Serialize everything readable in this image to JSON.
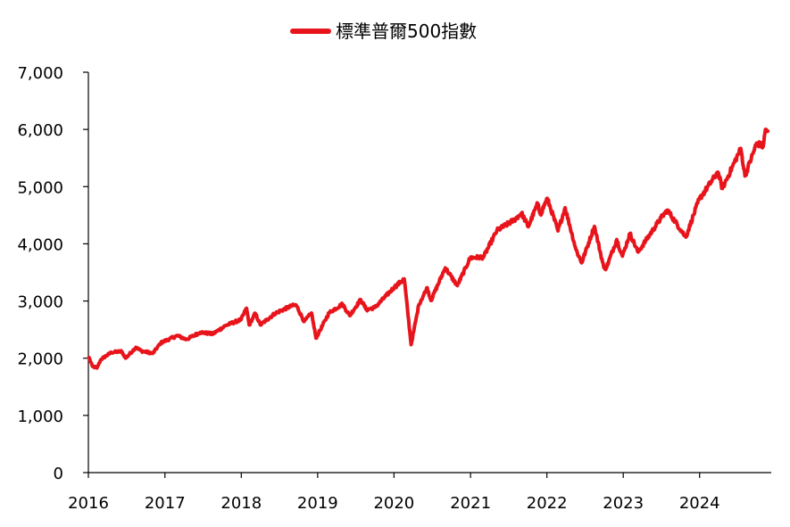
{
  "chart_data": {
    "type": "line",
    "title": "",
    "xlabel": "",
    "ylabel": "",
    "legend": {
      "position": "top-center",
      "entries": [
        "標準普爾500指數"
      ]
    },
    "grid": false,
    "xlim": [
      "2016-01-01",
      "2024-11-30"
    ],
    "ylim": [
      0,
      7000
    ],
    "x_ticks": [
      "2016",
      "2017",
      "2018",
      "2019",
      "2020",
      "2021",
      "2022",
      "2023",
      "2024"
    ],
    "y_ticks": [
      "0",
      "1,000",
      "2,000",
      "3,000",
      "4,000",
      "5,000",
      "6,000",
      "7,000"
    ],
    "y_tick_values": [
      0,
      1000,
      2000,
      3000,
      4000,
      5000,
      6000,
      7000
    ],
    "series": [
      {
        "name": "標準普爾500指數",
        "color": "#e8141b",
        "points": [
          [
            "2016-01-04",
            2013
          ],
          [
            "2016-01-20",
            1859
          ],
          [
            "2016-02-11",
            1829
          ],
          [
            "2016-03-01",
            1978
          ],
          [
            "2016-04-20",
            2102
          ],
          [
            "2016-06-08",
            2119
          ],
          [
            "2016-06-27",
            2000
          ],
          [
            "2016-08-15",
            2190
          ],
          [
            "2016-09-09",
            2128
          ],
          [
            "2016-11-04",
            2085
          ],
          [
            "2016-12-13",
            2271
          ],
          [
            "2017-03-01",
            2395
          ],
          [
            "2017-04-13",
            2328
          ],
          [
            "2017-06-19",
            2453
          ],
          [
            "2017-08-18",
            2425
          ],
          [
            "2017-10-20",
            2575
          ],
          [
            "2017-12-31",
            2674
          ],
          [
            "2018-01-26",
            2873
          ],
          [
            "2018-02-08",
            2581
          ],
          [
            "2018-03-09",
            2786
          ],
          [
            "2018-04-02",
            2582
          ],
          [
            "2018-06-12",
            2786
          ],
          [
            "2018-08-29",
            2914
          ],
          [
            "2018-09-20",
            2931
          ],
          [
            "2018-10-29",
            2641
          ],
          [
            "2018-12-03",
            2790
          ],
          [
            "2018-12-24",
            2351
          ],
          [
            "2019-02-25",
            2796
          ],
          [
            "2019-04-30",
            2946
          ],
          [
            "2019-06-03",
            2744
          ],
          [
            "2019-07-26",
            3025
          ],
          [
            "2019-08-23",
            2847
          ],
          [
            "2019-10-02",
            2888
          ],
          [
            "2019-12-31",
            3231
          ],
          [
            "2020-02-19",
            3386
          ],
          [
            "2020-03-23",
            2237
          ],
          [
            "2020-04-29",
            2939
          ],
          [
            "2020-06-08",
            3232
          ],
          [
            "2020-06-26",
            3009
          ],
          [
            "2020-09-02",
            3580
          ],
          [
            "2020-10-30",
            3270
          ],
          [
            "2020-12-31",
            3756
          ],
          [
            "2021-03-04",
            3768
          ],
          [
            "2021-05-07",
            4232
          ],
          [
            "2021-07-29",
            4419
          ],
          [
            "2021-09-02",
            4537
          ],
          [
            "2021-10-04",
            4300
          ],
          [
            "2021-11-18",
            4704
          ],
          [
            "2021-12-01",
            4513
          ],
          [
            "2022-01-03",
            4796
          ],
          [
            "2022-02-23",
            4225
          ],
          [
            "2022-03-29",
            4631
          ],
          [
            "2022-05-20",
            3901
          ],
          [
            "2022-06-16",
            3667
          ],
          [
            "2022-08-16",
            4305
          ],
          [
            "2022-09-30",
            3586
          ],
          [
            "2022-10-12",
            3577
          ],
          [
            "2022-12-01",
            4076
          ],
          [
            "2022-12-28",
            3783
          ],
          [
            "2023-02-02",
            4179
          ],
          [
            "2023-03-13",
            3855
          ],
          [
            "2023-06-30",
            4450
          ],
          [
            "2023-07-31",
            4589
          ],
          [
            "2023-10-27",
            4117
          ],
          [
            "2023-12-29",
            4770
          ],
          [
            "2024-03-28",
            5254
          ],
          [
            "2024-04-19",
            4967
          ],
          [
            "2024-07-16",
            5667
          ],
          [
            "2024-08-05",
            5186
          ],
          [
            "2024-09-30",
            5762
          ],
          [
            "2024-10-31",
            5705
          ],
          [
            "2024-11-11",
            6001
          ],
          [
            "2024-11-22",
            5970
          ]
        ]
      }
    ]
  }
}
